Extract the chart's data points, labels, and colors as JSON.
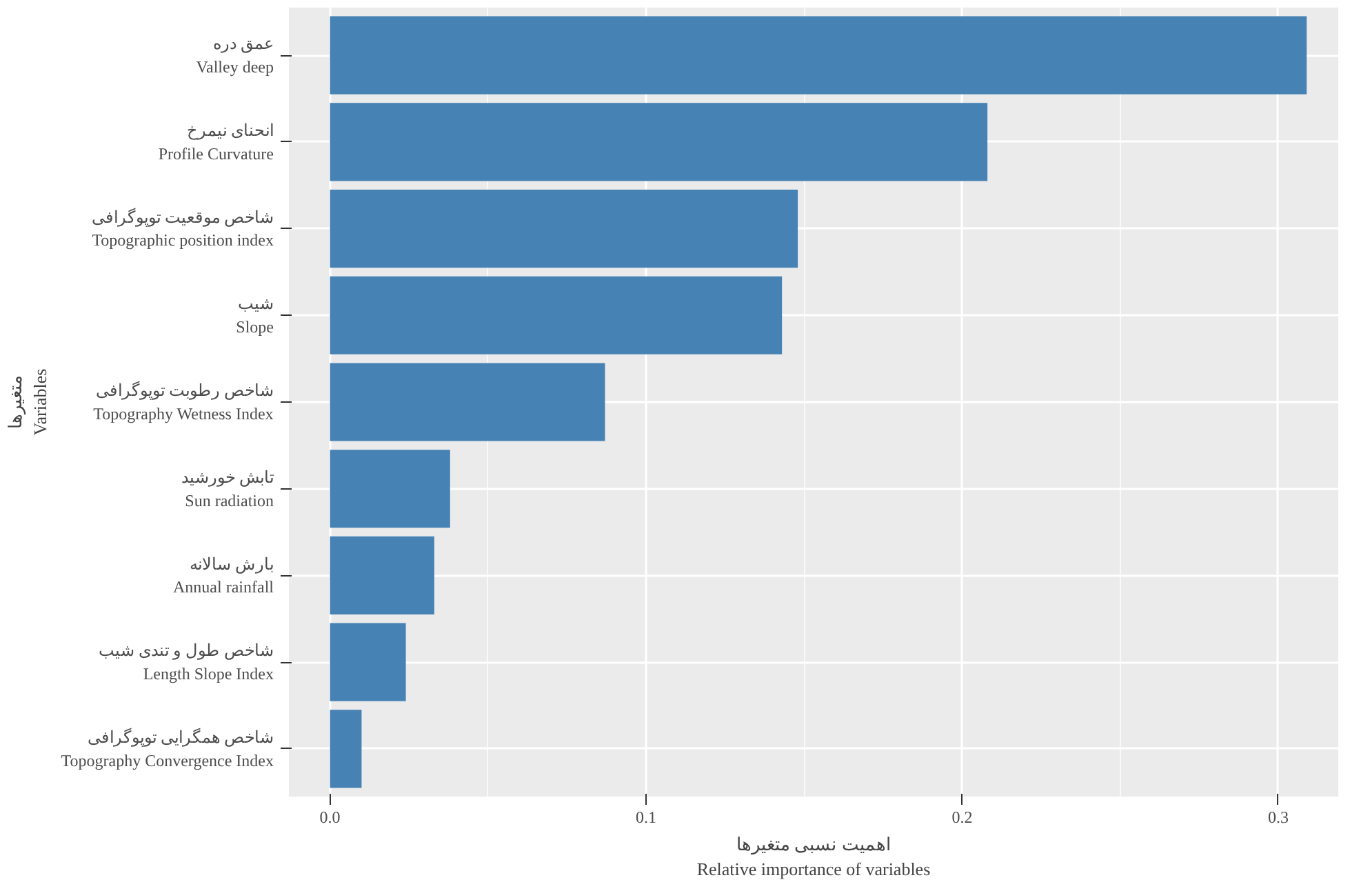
{
  "chart_data": {
    "type": "bar",
    "orientation": "horizontal",
    "categories": [
      "عمق دره\nValley deep",
      "انحنای نیمرخ\nProfile Curvature",
      "شاخص موقعیت توپوگرافی\nTopographic position index",
      "شیب\nSlope",
      "شاخص رطوبت توپوگرافی\nTopography Wetness Index",
      "تابش خورشید\nSun radiation",
      "بارش سالانه\nAnnual rainfall",
      "شاخص طول و تندی شیب\nLength Slope Index",
      "شاخص همگرایی توپوگرافی\nTopography Convergence Index"
    ],
    "values": [
      0.309,
      0.208,
      0.148,
      0.143,
      0.087,
      0.038,
      0.033,
      0.024,
      0.01
    ],
    "color": "#4682b4",
    "xlim": [
      -0.013,
      0.319
    ],
    "xticks": [
      {
        "value": 0,
        "label": "0.0"
      },
      0.1,
      0.2,
      0.3
    ],
    "xlabel": "اهمیت نسبی متغیرها\nRelative importance of variables",
    "ylabel": "متغیرها\nVariables",
    "grid": true
  }
}
